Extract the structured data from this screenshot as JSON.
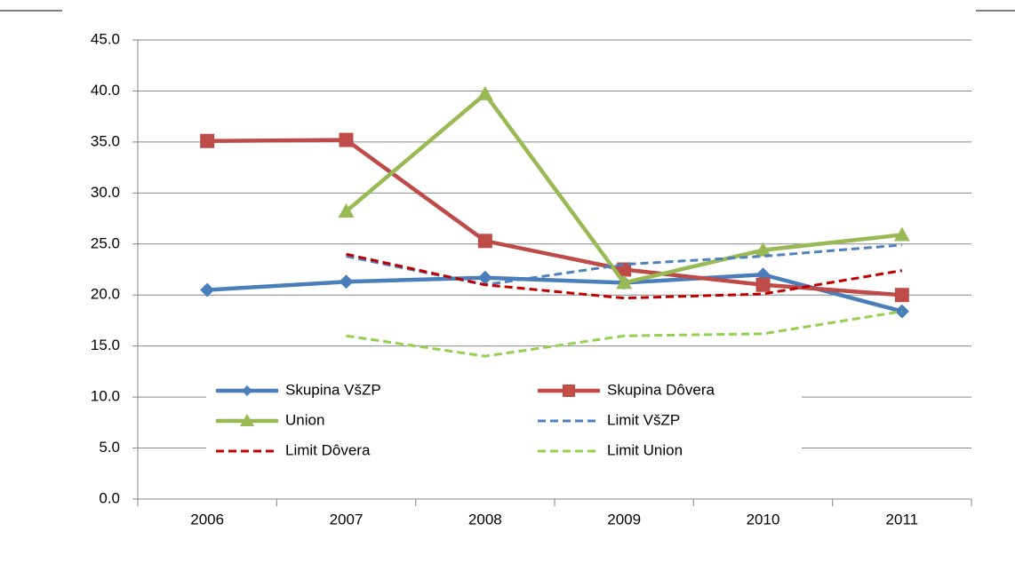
{
  "chart_data": {
    "type": "line",
    "categories": [
      "2006",
      "2007",
      "2008",
      "2009",
      "2010",
      "2011"
    ],
    "series": [
      {
        "name": "Skupina VšZP",
        "color": "#4a7ebb",
        "marker": "diamond",
        "dash": false,
        "values": [
          20.5,
          21.3,
          21.7,
          21.2,
          22.0,
          18.4
        ]
      },
      {
        "name": "Skupina Dôvera",
        "color": "#be4b48",
        "marker": "square",
        "dash": false,
        "values": [
          35.1,
          35.2,
          25.3,
          22.5,
          21.0,
          20.0
        ]
      },
      {
        "name": "Union",
        "color": "#98b954",
        "marker": "triangle",
        "dash": false,
        "values": [
          null,
          28.2,
          39.7,
          21.2,
          24.4,
          25.9
        ]
      },
      {
        "name": "Limit VšZP",
        "color": "#4f81bd",
        "marker": "none",
        "dash": true,
        "values": [
          null,
          23.8,
          21.0,
          23.0,
          23.8,
          24.9
        ]
      },
      {
        "name": "Limit Dôvera",
        "color": "#c00000",
        "marker": "none",
        "dash": true,
        "values": [
          null,
          24.0,
          21.0,
          19.7,
          20.1,
          22.4
        ]
      },
      {
        "name": "Limit Union",
        "color": "#92d050",
        "marker": "none",
        "dash": true,
        "values": [
          null,
          16.0,
          14.0,
          16.0,
          16.2,
          18.4
        ]
      }
    ],
    "ylim": [
      0,
      45
    ],
    "yticks": [
      {
        "value": 0,
        "label": "0.0"
      },
      {
        "value": 5,
        "label": "5.0"
      },
      {
        "value": 10,
        "label": "10.0"
      },
      {
        "value": 15,
        "label": "15.0"
      },
      {
        "value": 20,
        "label": "20.0"
      },
      {
        "value": 25,
        "label": "25.0"
      },
      {
        "value": 30,
        "label": "30.0"
      },
      {
        "value": 35,
        "label": "35.0"
      },
      {
        "value": 40,
        "label": "40.0"
      },
      {
        "value": 45,
        "label": "45.0"
      }
    ],
    "grid": true,
    "legend": "inside-bottom"
  }
}
